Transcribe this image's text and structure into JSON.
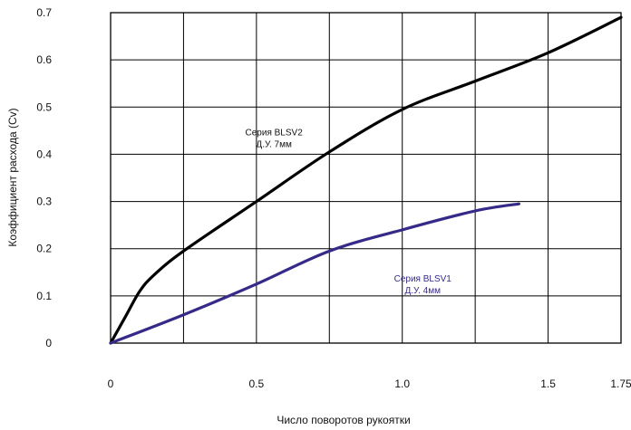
{
  "chart_data": {
    "type": "line",
    "xlabel": "Число поворотов рукоятки",
    "ylabel": "Коэффициент расхода (Cv)",
    "xlim": [
      0,
      1.75
    ],
    "ylim": [
      0,
      0.7
    ],
    "x_ticks": [
      0,
      0.25,
      0.5,
      0.75,
      1.0,
      1.25,
      1.5,
      1.75
    ],
    "x_tick_labels": [
      "0",
      "",
      "0.5",
      "",
      "1.0",
      "",
      "1.5",
      "1.75"
    ],
    "y_ticks": [
      0,
      0.1,
      0.2,
      0.3,
      0.4,
      0.5,
      0.6,
      0.7
    ],
    "y_tick_labels": [
      "0",
      "0.1",
      "0.2",
      "0.3",
      "0.4",
      "0.5",
      "0.6",
      "0.7"
    ],
    "grid": true,
    "series": [
      {
        "color": "#000000",
        "x": [
          0,
          0.05,
          0.1,
          0.15,
          0.25,
          0.5,
          0.75,
          1.0,
          1.25,
          1.5,
          1.75
        ],
        "y": [
          0,
          0.055,
          0.11,
          0.145,
          0.195,
          0.3,
          0.405,
          0.495,
          0.555,
          0.615,
          0.69
        ]
      },
      {
        "color": "#352a88",
        "x": [
          0,
          0.25,
          0.5,
          0.75,
          1.0,
          1.25,
          1.4
        ],
        "y": [
          0,
          0.06,
          0.125,
          0.195,
          0.24,
          0.28,
          0.295
        ]
      }
    ],
    "annotations": [
      {
        "lines": [
          "Серия BLSV2",
          "Д.У. 7мм"
        ],
        "x": 0.56,
        "y": 0.44,
        "color": "#111111"
      },
      {
        "lines": [
          "Серия BLSV1",
          "Д.У. 4мм"
        ],
        "x": 1.07,
        "y": 0.13,
        "color": "#352a88"
      }
    ]
  }
}
